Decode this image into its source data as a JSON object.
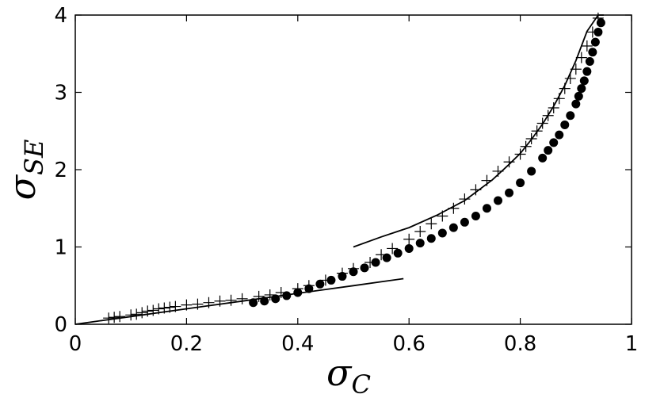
{
  "chart_data": {
    "type": "scatter",
    "xlabel": "σ",
    "xlabel_sub": "C",
    "ylabel": "σ",
    "ylabel_sub": "SE",
    "xlim": [
      0,
      1
    ],
    "ylim": [
      0,
      4
    ],
    "grid": false,
    "legend": "none",
    "x_ticks": [
      {
        "value": 0,
        "label": "0"
      },
      {
        "value": 0.2,
        "label": "0.2"
      },
      {
        "value": 0.4,
        "label": "0.4"
      },
      {
        "value": 0.6,
        "label": "0.6"
      },
      {
        "value": 0.8,
        "label": "0.8"
      },
      {
        "value": 1,
        "label": "1"
      }
    ],
    "y_ticks": [
      {
        "value": 0,
        "label": "0"
      },
      {
        "value": 1,
        "label": "1"
      },
      {
        "value": 2,
        "label": "2"
      },
      {
        "value": 3,
        "label": "3"
      },
      {
        "value": 4,
        "label": "4"
      }
    ],
    "series": [
      {
        "marker": "plus",
        "color": "#000000",
        "x": [
          0.06,
          0.07,
          0.08,
          0.1,
          0.11,
          0.12,
          0.13,
          0.14,
          0.15,
          0.16,
          0.17,
          0.18,
          0.2,
          0.22,
          0.24,
          0.26,
          0.28,
          0.3,
          0.33,
          0.35,
          0.37,
          0.4,
          0.42,
          0.45,
          0.48,
          0.5,
          0.53,
          0.55,
          0.57,
          0.6,
          0.62,
          0.64,
          0.66,
          0.68,
          0.7,
          0.72,
          0.74,
          0.76,
          0.78,
          0.8,
          0.81,
          0.82,
          0.83,
          0.84,
          0.85,
          0.86,
          0.87,
          0.88,
          0.89,
          0.9,
          0.91,
          0.92,
          0.93,
          0.94
        ],
        "y": [
          0.08,
          0.09,
          0.1,
          0.12,
          0.13,
          0.15,
          0.17,
          0.18,
          0.2,
          0.21,
          0.22,
          0.23,
          0.25,
          0.26,
          0.28,
          0.3,
          0.31,
          0.33,
          0.36,
          0.38,
          0.41,
          0.46,
          0.5,
          0.57,
          0.66,
          0.72,
          0.8,
          0.9,
          0.98,
          1.1,
          1.2,
          1.3,
          1.4,
          1.5,
          1.62,
          1.74,
          1.86,
          1.98,
          2.1,
          2.2,
          2.3,
          2.4,
          2.5,
          2.6,
          2.7,
          2.8,
          2.92,
          3.05,
          3.18,
          3.3,
          3.45,
          3.6,
          3.78,
          3.96
        ]
      },
      {
        "marker": "circle",
        "color": "#000000",
        "x": [
          0.32,
          0.34,
          0.36,
          0.38,
          0.4,
          0.42,
          0.44,
          0.46,
          0.48,
          0.5,
          0.52,
          0.54,
          0.56,
          0.58,
          0.6,
          0.62,
          0.64,
          0.66,
          0.68,
          0.7,
          0.72,
          0.74,
          0.76,
          0.78,
          0.8,
          0.82,
          0.84,
          0.85,
          0.86,
          0.87,
          0.88,
          0.89,
          0.9,
          0.905,
          0.91,
          0.915,
          0.92,
          0.925,
          0.93,
          0.935,
          0.94,
          0.945
        ],
        "y": [
          0.28,
          0.3,
          0.33,
          0.37,
          0.41,
          0.46,
          0.52,
          0.57,
          0.62,
          0.68,
          0.73,
          0.8,
          0.86,
          0.92,
          0.98,
          1.05,
          1.11,
          1.18,
          1.25,
          1.32,
          1.4,
          1.5,
          1.6,
          1.7,
          1.83,
          1.98,
          2.15,
          2.25,
          2.35,
          2.45,
          2.58,
          2.7,
          2.85,
          2.95,
          3.05,
          3.15,
          3.27,
          3.4,
          3.52,
          3.65,
          3.78,
          3.9
        ]
      }
    ],
    "fit_lines": [
      {
        "x": [
          0.0,
          0.05,
          0.1,
          0.15,
          0.2,
          0.25,
          0.3,
          0.35,
          0.4,
          0.45,
          0.5,
          0.55,
          0.59
        ],
        "y": [
          0.0,
          0.05,
          0.1,
          0.15,
          0.2,
          0.25,
          0.3,
          0.35,
          0.4,
          0.45,
          0.5,
          0.55,
          0.59
        ]
      },
      {
        "x": [
          0.5,
          0.55,
          0.6,
          0.65,
          0.7,
          0.75,
          0.78,
          0.8,
          0.82,
          0.84,
          0.86,
          0.88,
          0.9,
          0.92,
          0.94,
          0.95
        ],
        "y": [
          1.0,
          1.13,
          1.25,
          1.41,
          1.6,
          1.87,
          2.07,
          2.21,
          2.39,
          2.59,
          2.82,
          3.09,
          3.41,
          3.79,
          4.25,
          4.3
        ]
      }
    ]
  }
}
